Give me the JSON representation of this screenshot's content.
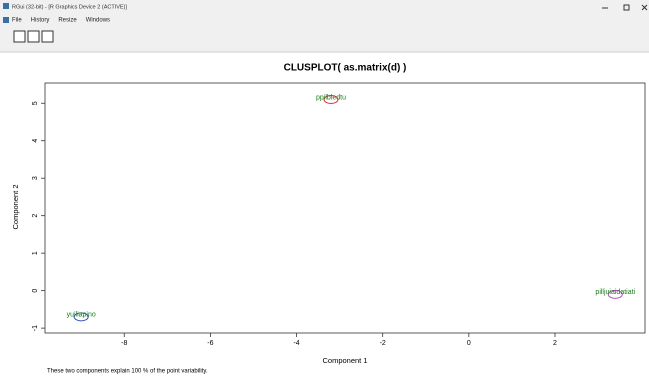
{
  "window": {
    "title": "RGui (32-bit) - [R Graphics Device 2 (ACTIVE)]",
    "menu": [
      "File",
      "History",
      "Resize",
      "Windows"
    ]
  },
  "chart_data": {
    "type": "scatter",
    "title": "CLUSPLOT( as.matrix(d) )",
    "xlabel": "Component 1",
    "ylabel": "Component 2",
    "footnote": "These two components explain 100 % of the point variability.",
    "xlim": [
      -9.84,
      4.09
    ],
    "ylim": [
      -1.13,
      5.54
    ],
    "xticks": [
      -8,
      -6,
      -4,
      -2,
      0,
      2
    ],
    "yticks": [
      -1,
      0,
      1,
      2,
      3,
      4,
      5
    ],
    "series": [
      {
        "color": "#e03030",
        "x": [
          -3.2
        ],
        "values": [
          5.1
        ],
        "labels": [
          "ppilbledtu"
        ]
      },
      {
        "color": "#3050c0",
        "x": [
          -9.0
        ],
        "values": [
          -0.7
        ],
        "labels": [
          "yuiliapino"
        ]
      },
      {
        "color": "#b050c0",
        "x": [
          3.4
        ],
        "values": [
          -0.1
        ],
        "labels": [
          "pilljuiaidatiati"
        ]
      }
    ]
  }
}
